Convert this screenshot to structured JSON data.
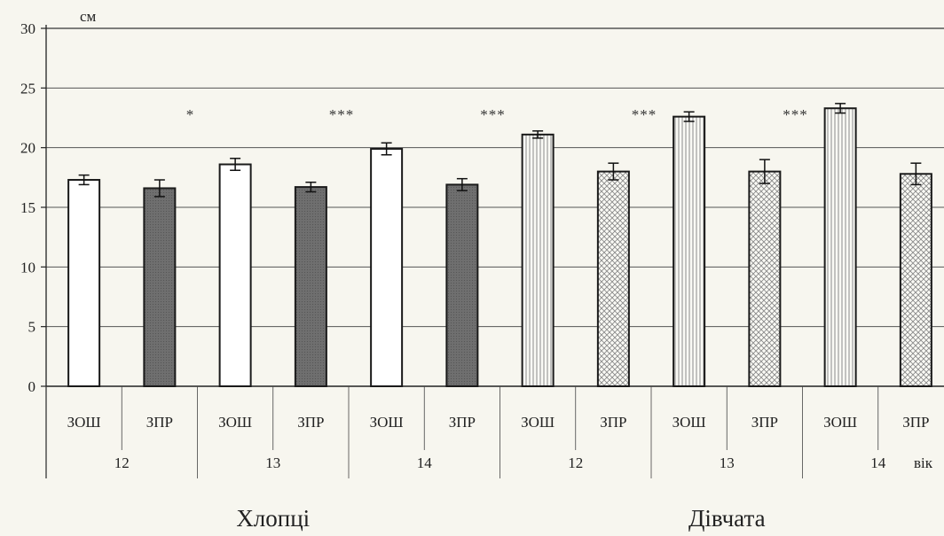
{
  "chart_data": {
    "type": "bar",
    "y_unit": "см",
    "x_unit": "вік",
    "ylim": [
      0,
      30
    ],
    "yticks": [
      0,
      5,
      10,
      15,
      20,
      25,
      30
    ],
    "grid": true,
    "groups": [
      {
        "label": "Хлопці",
        "ages": [
          "12",
          "13",
          "14"
        ]
      },
      {
        "label": "Дівчата",
        "ages": [
          "12",
          "13",
          "14"
        ]
      }
    ],
    "school_types": [
      "ЗОШ",
      "ЗПР"
    ],
    "bars": [
      {
        "group": "Хлопці",
        "age": "12",
        "school": "ЗОШ",
        "value": 17.3,
        "error": 0.4,
        "significance": ""
      },
      {
        "group": "Хлопці",
        "age": "12",
        "school": "ЗПР",
        "value": 16.6,
        "error": 0.7,
        "significance": ""
      },
      {
        "group": "Хлопці",
        "age": "13",
        "school": "ЗОШ",
        "value": 18.6,
        "error": 0.5,
        "significance": ""
      },
      {
        "group": "Хлопці",
        "age": "13",
        "school": "ЗПР",
        "value": 16.7,
        "error": 0.4,
        "significance": "*"
      },
      {
        "group": "Хлопці",
        "age": "14",
        "school": "ЗОШ",
        "value": 19.9,
        "error": 0.5,
        "significance": ""
      },
      {
        "group": "Хлопці",
        "age": "14",
        "school": "ЗПР",
        "value": 16.9,
        "error": 0.5,
        "significance": "***"
      },
      {
        "group": "Дівчата",
        "age": "12",
        "school": "ЗОШ",
        "value": 21.1,
        "error": 0.3,
        "significance": ""
      },
      {
        "group": "Дівчата",
        "age": "12",
        "school": "ЗПР",
        "value": 18.0,
        "error": 0.7,
        "significance": "***"
      },
      {
        "group": "Дівчата",
        "age": "13",
        "school": "ЗОШ",
        "value": 22.6,
        "error": 0.4,
        "significance": ""
      },
      {
        "group": "Дівчата",
        "age": "13",
        "school": "ЗПР",
        "value": 18.0,
        "error": 1.0,
        "significance": "***"
      },
      {
        "group": "Дівчата",
        "age": "14",
        "school": "ЗОШ",
        "value": 23.3,
        "error": 0.4,
        "significance": ""
      },
      {
        "group": "Дівчата",
        "age": "14",
        "school": "ЗПР",
        "value": 17.8,
        "error": 0.9,
        "significance": "***"
      }
    ],
    "bar_styles": {
      "Хлопці|ЗОШ": "white",
      "Хлопці|ЗПР": "dark-gray",
      "Дівчата|ЗОШ": "vertical-lines",
      "Дівчата|ЗПР": "crosshatch"
    },
    "colors": {
      "background": "#f7f6ef",
      "outline": "#1a1a1a",
      "dark_fill": "#6f6f6f",
      "grid": "#555555"
    }
  }
}
